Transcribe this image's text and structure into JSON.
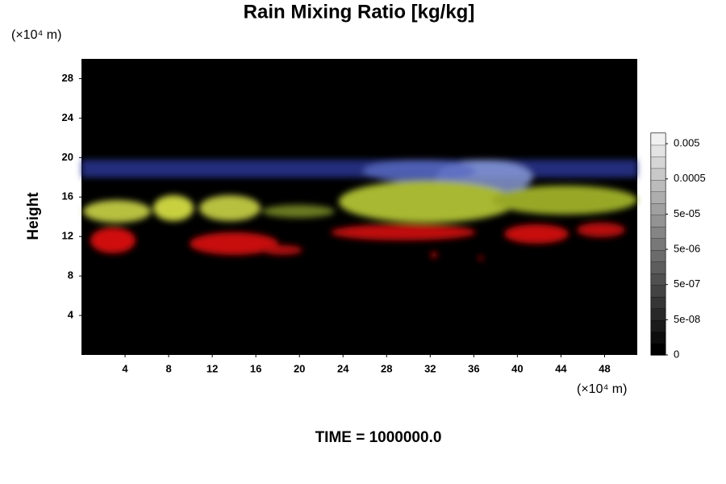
{
  "chart_data": {
    "type": "volume",
    "title": "Rain Mixing Ratio [kg/kg]",
    "y_unit": "(×10⁴ m)",
    "x_unit": "(×10⁴ m)",
    "ylabel": "Height",
    "annotation": "TIME = 1000000.0",
    "xlim": [
      0,
      51
    ],
    "xticks": [
      4,
      8,
      12,
      16,
      20,
      24,
      28,
      32,
      36,
      40,
      44,
      48
    ],
    "ylim": [
      0,
      30
    ],
    "yticks": [
      4,
      8,
      12,
      16,
      20,
      24,
      28
    ],
    "colorbar": {
      "scale": "log",
      "clim": [
        5e-09,
        0.01
      ],
      "ticks": [
        0.005,
        0.0005,
        {
          "value": 5e-05,
          "label": "5e-05"
        },
        {
          "value": 5e-06,
          "label": "5e-06"
        },
        {
          "value": 5e-07,
          "label": "5e-07"
        },
        {
          "value": 5e-08,
          "label": "5e-08"
        },
        0
      ]
    }
  }
}
